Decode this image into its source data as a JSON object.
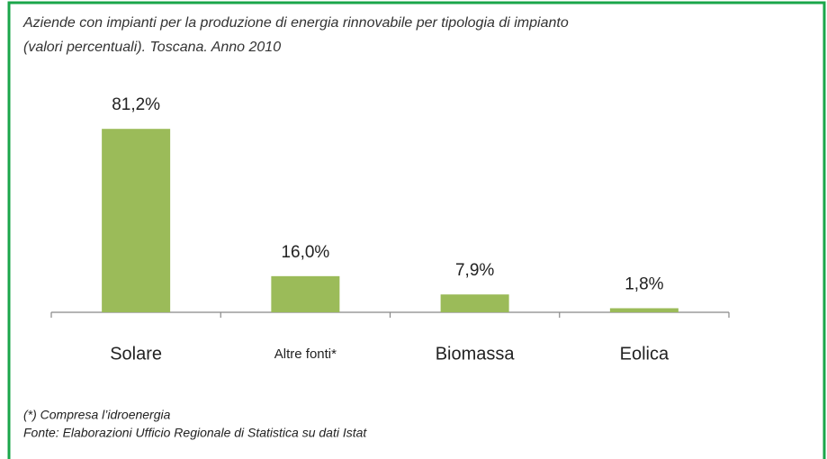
{
  "chart_data": {
    "type": "bar",
    "title": "Aziende con impianti per la produzione di energia rinnovabile per tipologia di impianto",
    "subtitle": "(valori percentuali). Toscana. Anno 2010",
    "categories": [
      "Solare",
      "Altre fonti*",
      "Biomassa",
      "Eolica"
    ],
    "values": [
      81.2,
      16.0,
      7.9,
      1.8
    ],
    "value_labels": [
      "81,2%",
      "16,0%",
      "7,9%",
      "1,8%"
    ],
    "color": "#9bbb59",
    "notes": [
      "(*) Compresa l’idroenergia",
      "Fonte: Elaborazioni Ufficio Regionale di Statistica su dati Istat"
    ]
  }
}
